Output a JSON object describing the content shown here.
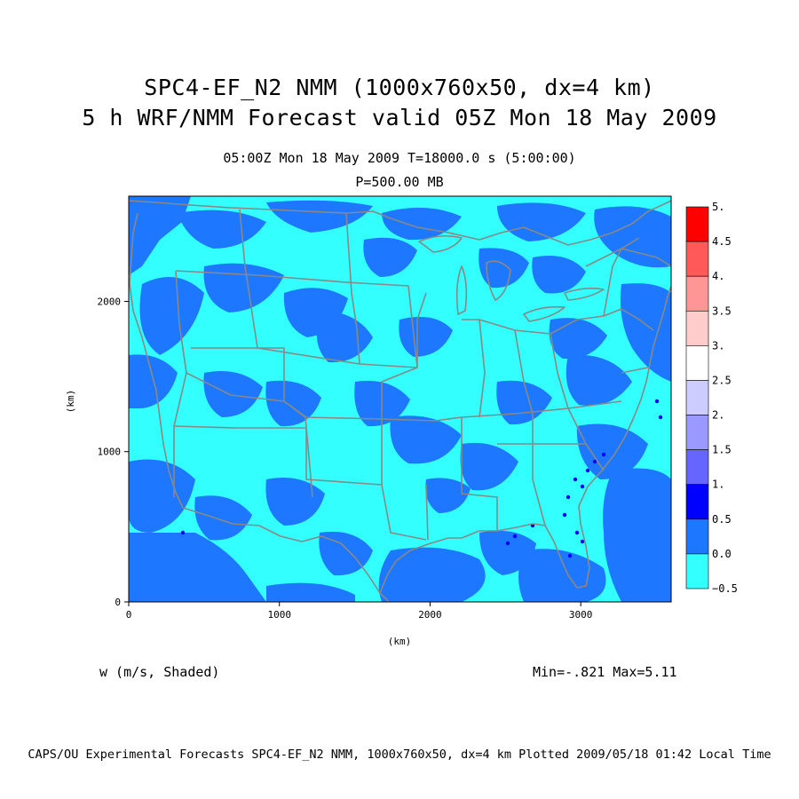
{
  "title": {
    "line1": "SPC4-EF_N2 NMM (1000x760x50, dx=4 km)",
    "line2": "5 h WRF/NMM Forecast valid 05Z Mon 18 May 2009"
  },
  "subtitle": {
    "line1": "05:00Z Mon 18 May 2009     T=18000.0 s (5:00:00)",
    "line2": "P=500.00 MB"
  },
  "map": {
    "xlabel": "(km)",
    "ylabel": "(km)",
    "x_ticks": [
      "0",
      "1000",
      "2000",
      "3000"
    ],
    "y_ticks": [
      "0",
      "1000",
      "2000"
    ],
    "x_range": [
      0,
      3600
    ],
    "y_range": [
      0,
      2700
    ],
    "variable_label": "w (m/s, Shaded)",
    "min_max_label": "Min=-.821 Max=5.11",
    "colors": {
      "background_field": "#33ffff",
      "dominant_anomaly": "#1e78ff",
      "boundaries": "#888888"
    }
  },
  "colorbar": {
    "labels": [
      "5.",
      "4.5",
      "4.",
      "3.5",
      "3.",
      "2.5",
      "2.",
      "1.5",
      "1.",
      "0.5",
      "0.0",
      "−0.5"
    ],
    "colors": [
      "#ff0000",
      "#ff5a5a",
      "#ff9696",
      "#ffcccc",
      "#ffffff",
      "#ccccff",
      "#9999ff",
      "#6666ff",
      "#0000ff",
      "#1e78ff",
      "#33ffff"
    ]
  },
  "footer": "CAPS/OU Experimental Forecasts  SPC4-EF_N2 NMM, 1000x760x50, dx=4 km  Plotted 2009/05/18 01:42 Local Time"
}
